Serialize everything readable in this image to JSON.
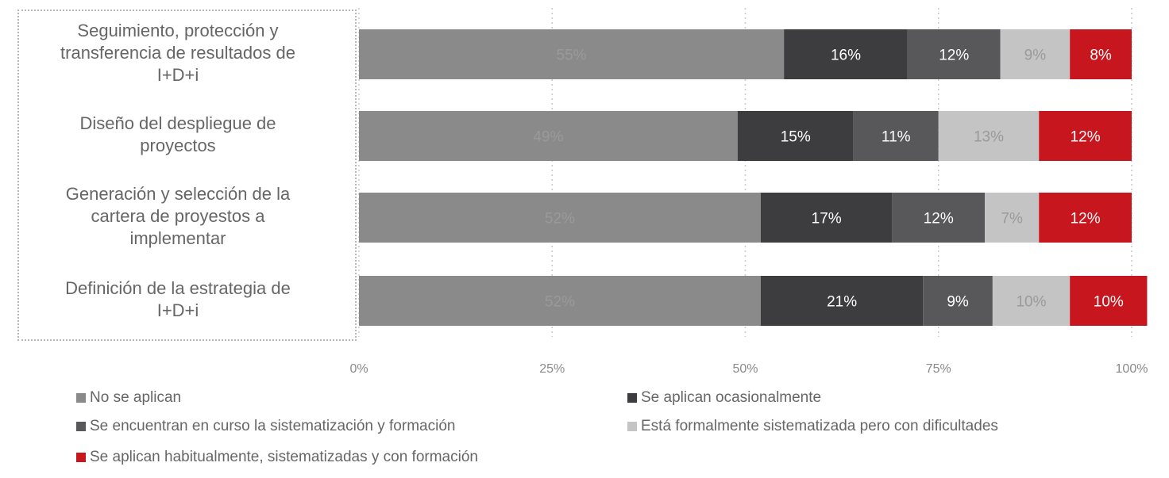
{
  "chart_data": {
    "type": "bar",
    "orientation": "horizontal",
    "stacked": true,
    "percent_stacked": true,
    "categories": [
      "Seguimiento, protección y transferencia de resultados de I+D+i",
      "Diseño del despliegue de proyectos",
      "Generación y selección de la cartera de proyestos a implementar",
      "Definición de la estrategia de I+D+i"
    ],
    "category_lines": [
      [
        "Seguimiento, protección y",
        "transferencia de resultados de",
        "I+D+i"
      ],
      [
        "Diseño del despliegue de",
        "proyectos"
      ],
      [
        "Generación y selección de la",
        "cartera de proyestos a",
        "implementar"
      ],
      [
        "Definición de la estrategia de",
        "I+D+i"
      ]
    ],
    "series": [
      {
        "name": "No se aplican",
        "values": [
          55,
          49,
          52,
          52
        ],
        "color": "#8a8a8a",
        "label_color": "#9a9a9a"
      },
      {
        "name": "Se aplican ocasionalmente",
        "values": [
          16,
          15,
          17,
          21
        ],
        "color": "#3d3d40",
        "label_color": "#ffffff"
      },
      {
        "name": "Se encuentran en curso la sistematización y formación",
        "values": [
          12,
          11,
          12,
          9
        ],
        "color": "#58585b",
        "label_color": "#ffffff"
      },
      {
        "name": "Está formalmente sistematizada pero con dificultades",
        "values": [
          9,
          13,
          7,
          10
        ],
        "color": "#c4c4c4",
        "label_color": "#9a9a9a"
      },
      {
        "name": "Se aplican habitualmente, sistematizadas y con formación",
        "values": [
          8,
          12,
          12,
          10
        ],
        "color": "#c8161e",
        "label_color": "#ffffff"
      }
    ],
    "value_labels": [
      [
        "55%",
        "16%",
        "12%",
        "9%",
        "8%"
      ],
      [
        "49%",
        "15%",
        "11%",
        "13%",
        "12%"
      ],
      [
        "52%",
        "17%",
        "12%",
        "7%",
        "12%"
      ],
      [
        "52%",
        "21%",
        "9%",
        "10%",
        "10%"
      ]
    ],
    "x_ticks": [
      "0%",
      "25%",
      "50%",
      "75%",
      "100%"
    ],
    "xlim": [
      0,
      100
    ],
    "grid": "vertical-dotted",
    "legend_position": "bottom"
  }
}
